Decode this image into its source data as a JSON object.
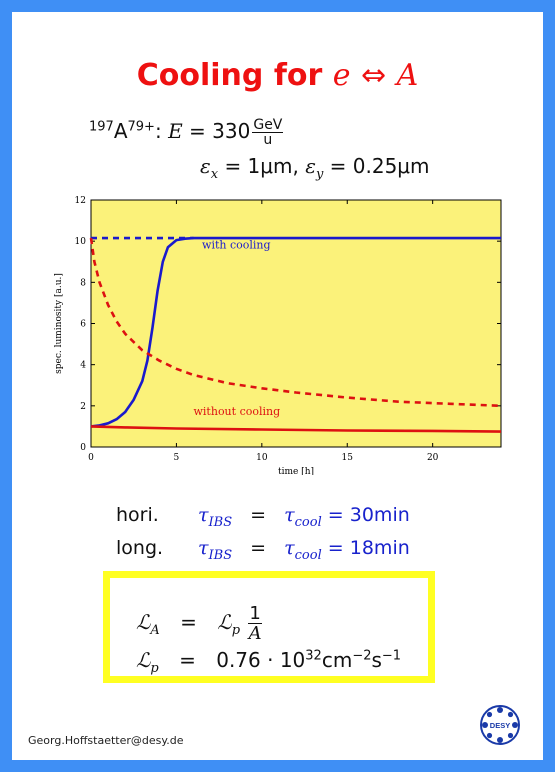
{
  "title": {
    "text": "Cooling for",
    "e": "e",
    "arrow": "⇔",
    "A": "A"
  },
  "beam": {
    "mass_number": "197",
    "element": "A",
    "charge": "79+",
    "energy_symbol": "E",
    "energy_value": "330",
    "energy_unit_num": "GeV",
    "energy_unit_den": "u",
    "emit_x_symbol": "ε",
    "emit_x_sub": "x",
    "emit_x_value": "= 1μm,",
    "emit_y_symbol": "ε",
    "emit_y_sub": "y",
    "emit_y_value": "= 0.25μm"
  },
  "chart_data": {
    "type": "line",
    "xlabel": "time [h]",
    "ylabel": "spec. luminosity [a.u.]",
    "xlim": [
      0,
      24
    ],
    "ylim": [
      0,
      12
    ],
    "xticks": [
      0,
      5,
      10,
      15,
      20
    ],
    "yticks": [
      0,
      2,
      4,
      6,
      8,
      10,
      12
    ],
    "background": "#fbf27a",
    "grid": false,
    "series": [
      {
        "label": "with cooling",
        "style": "solid",
        "color": "#1a1acc",
        "x": [
          0,
          0.5,
          1,
          1.5,
          2,
          2.5,
          3,
          3.3,
          3.6,
          3.9,
          4.2,
          4.5,
          5,
          5.5,
          6,
          7,
          10,
          15,
          20,
          24
        ],
        "y": [
          1.0,
          1.05,
          1.15,
          1.35,
          1.7,
          2.3,
          3.2,
          4.2,
          5.8,
          7.6,
          9.0,
          9.7,
          10.05,
          10.12,
          10.15,
          10.15,
          10.15,
          10.15,
          10.15,
          10.15
        ]
      },
      {
        "style": "dashed",
        "color": "#1a1acc",
        "x": [
          0,
          6
        ],
        "y": [
          10.15,
          10.15
        ]
      },
      {
        "label": "without cooling",
        "style": "solid",
        "color": "#dd1111",
        "x": [
          0,
          2,
          5,
          10,
          15,
          20,
          24
        ],
        "y": [
          1.0,
          0.95,
          0.9,
          0.85,
          0.8,
          0.78,
          0.75
        ]
      },
      {
        "style": "dashed",
        "color": "#dd1111",
        "x": [
          0,
          0.2,
          0.5,
          1,
          1.5,
          2,
          3,
          4,
          5,
          6,
          8,
          10,
          12,
          15,
          18,
          21,
          24
        ],
        "y": [
          10.15,
          9.0,
          8.0,
          6.9,
          6.1,
          5.5,
          4.7,
          4.2,
          3.8,
          3.5,
          3.1,
          2.85,
          2.65,
          2.4,
          2.2,
          2.1,
          2.0
        ]
      }
    ],
    "annotations": [
      {
        "text": "with cooling",
        "x": 6.5,
        "y": 9.65,
        "color": "#1a1acc"
      },
      {
        "text": "without cooling",
        "x": 6,
        "y": 1.55,
        "color": "#dd1111"
      }
    ]
  },
  "cooling_times": [
    {
      "label": "hori.",
      "tau": "τ",
      "ibs": "IBS",
      "eq": "=",
      "tau2": "τ",
      "cool": "cool",
      "value": "= 30min"
    },
    {
      "label": "long.",
      "tau": "τ",
      "ibs": "IBS",
      "eq": "=",
      "tau2": "τ",
      "cool": "cool",
      "value": "= 18min"
    }
  ],
  "luminosity": {
    "row1_lhs": "ℒ",
    "row1_lhs_sub": "A",
    "row1_eq": "=",
    "row1_rhs": "ℒ",
    "row1_rhs_sub": "p",
    "row1_frac_num": "1",
    "row1_frac_den": "A",
    "row2_lhs": "ℒ",
    "row2_lhs_sub": "p",
    "row2_eq": "=",
    "row2_value": "0.76 · 10",
    "row2_exp": "32",
    "row2_unit": "cm",
    "row2_unit_exp": "−2",
    "row2_unit2": "s",
    "row2_unit2_exp": "−1"
  },
  "footer": {
    "email": "Georg.Hoffstaetter@desy.de"
  },
  "logo": {
    "text": "DESY",
    "icon": "desy-logo-icon",
    "color": "#1a3aa8"
  }
}
